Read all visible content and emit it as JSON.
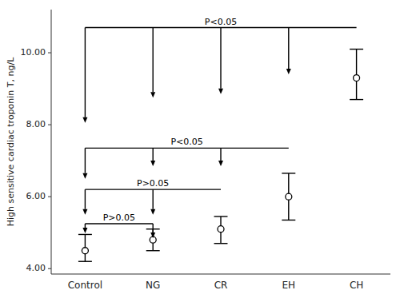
{
  "chart_data": {
    "type": "errorbar",
    "ylabel": "High sensitive cardiac troponin T, ng/L",
    "categories": [
      "Control",
      "NG",
      "CR",
      "EH",
      "CH"
    ],
    "values": [
      4.5,
      4.8,
      5.1,
      6.0,
      9.3
    ],
    "ci_upper": [
      4.95,
      5.1,
      5.45,
      6.65,
      10.1
    ],
    "ci_lower": [
      4.2,
      4.5,
      4.7,
      5.35,
      8.7
    ],
    "color": "black",
    "ylim": [
      3.85,
      11.2
    ],
    "yticks": [
      {
        "value": 4.0,
        "label": "4.00"
      },
      {
        "value": 6.0,
        "label": "6.00"
      },
      {
        "value": 8.0,
        "label": "8.00"
      },
      {
        "value": 10.0,
        "label": "10.00"
      }
    ],
    "grid": false,
    "annotations": [
      {
        "text": "P<0.05",
        "y": 10.7,
        "from": "Control",
        "to": "CH",
        "arrows": [
          {
            "category": "Control",
            "y": 8.05
          },
          {
            "category": "NG",
            "y": 8.75
          },
          {
            "category": "CR",
            "y": 8.85
          },
          {
            "category": "EH",
            "y": 9.4
          }
        ]
      },
      {
        "text": "P<0.05",
        "y": 7.35,
        "from": "Control",
        "to": "EH",
        "arrows": [
          {
            "category": "Control",
            "y": 6.5
          },
          {
            "category": "NG",
            "y": 6.85
          },
          {
            "category": "CR",
            "y": 6.85
          }
        ]
      },
      {
        "text": "P>0.05",
        "y": 6.2,
        "from": "Control",
        "to": "CR",
        "arrows": [
          {
            "category": "Control",
            "y": 5.5
          },
          {
            "category": "NG",
            "y": 5.5
          }
        ]
      },
      {
        "text": "P>0.05",
        "y": 5.25,
        "from": "Control",
        "to": "NG",
        "arrows": [
          {
            "category": "Control",
            "y": 4.98
          },
          {
            "category": "NG",
            "y": 4.85
          }
        ]
      }
    ]
  }
}
